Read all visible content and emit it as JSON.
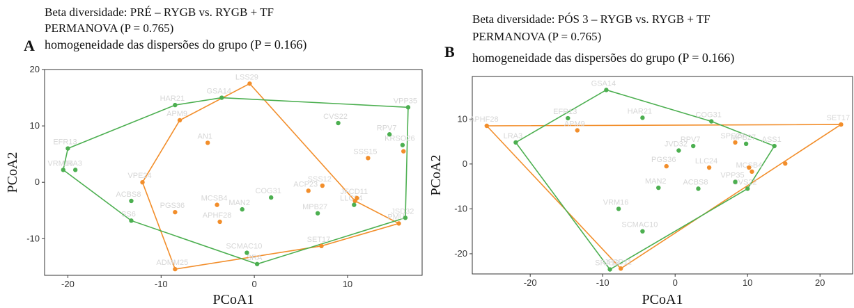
{
  "colors": {
    "rygb": "#F28E2B",
    "rygb_tf": "#4CAF50",
    "label": "#d6d6d6"
  },
  "chart_data": [
    {
      "type": "scatter",
      "panel": "A",
      "title": "Beta diversidade:  PRÉ – RYGB vs. RYGB + TF",
      "subtitle1": "PERMANOVA  (P = 0.765)",
      "subtitle2": "homogeneidade  das dispersões  do grupo (P = 0.166)",
      "xlabel": "PCoA1",
      "ylabel": "PCoA2",
      "xlim": [
        -22.5,
        18
      ],
      "ylim": [
        -16.5,
        20
      ],
      "xticks": [
        -20,
        -10,
        0,
        10
      ],
      "yticks": [
        -10,
        0,
        10,
        20
      ],
      "series": [
        {
          "color": "#F28E2B",
          "points": [
            {
              "label": "LSS29",
              "x": -0.5,
              "y": 17.5
            },
            {
              "label": "APM9",
              "x": -8,
              "y": 11
            },
            {
              "label": "AN1",
              "x": -5,
              "y": 7
            },
            {
              "label": "VPE24",
              "x": -12,
              "y": 0
            },
            {
              "label": "PGS36",
              "x": -8.5,
              "y": -5.3
            },
            {
              "label": "MCSB4",
              "x": -4,
              "y": -4
            },
            {
              "label": "APHF28",
              "x": -3.7,
              "y": -7
            },
            {
              "label": "ADMM25",
              "x": -8.5,
              "y": -15.4
            },
            {
              "label": "SET17",
              "x": 7.2,
              "y": -11.3
            },
            {
              "label": "ACP23",
              "x": 5.8,
              "y": -1.5
            },
            {
              "label": "SSS12",
              "x": 7.3,
              "y": -0.6
            },
            {
              "label": "SSS15",
              "x": 12.2,
              "y": 4.3
            },
            {
              "label": "JFCD11",
              "x": 11,
              "y": -2.8
            },
            {
              "label": "",
              "x": 10.8,
              "y": -3.3
            },
            {
              "label": "PMU",
              "x": 15.5,
              "y": -7.3
            },
            {
              "label": "",
              "x": 16,
              "y": 5.5
            }
          ],
          "hull": [
            "LSS29",
            "APM9",
            "VPE24",
            "ADMM25",
            "SET17",
            "PMU",
            "",
            "LSS29"
          ]
        },
        {
          "color": "#4CAF50",
          "points": [
            {
              "label": "HAR21",
              "x": -8.5,
              "y": 13.7
            },
            {
              "label": "GSA14",
              "x": -3.5,
              "y": 15
            },
            {
              "label": "EFR13",
              "x": -20,
              "y": 6
            },
            {
              "label": "VRM16",
              "x": -20.5,
              "y": 2.2
            },
            {
              "label": "LRA3",
              "x": -19.2,
              "y": 2.2
            },
            {
              "label": "ACBS8",
              "x": -13.2,
              "y": -3.3
            },
            {
              "label": "SS6",
              "x": -13.2,
              "y": -6.8
            },
            {
              "label": "MAN2",
              "x": -1.3,
              "y": -4.8
            },
            {
              "label": "COG31",
              "x": 1.8,
              "y": -2.7
            },
            {
              "label": "SCMAC10",
              "x": -0.8,
              "y": -12.5
            },
            {
              "label": "SRA",
              "x": 0.3,
              "y": -14.5
            },
            {
              "label": "MPB27",
              "x": 6.8,
              "y": -5.5
            },
            {
              "label": "LLC24",
              "x": 10.7,
              "y": -4
            },
            {
              "label": "CVS22",
              "x": 9,
              "y": 10.5
            },
            {
              "label": "VPP35",
              "x": 16.5,
              "y": 13.3
            },
            {
              "label": "RPV7",
              "x": 14.5,
              "y": 8.5
            },
            {
              "label": "KRSO26",
              "x": 15.9,
              "y": 6.6
            },
            {
              "label": "JSD32",
              "x": 16.2,
              "y": -6.3
            }
          ],
          "hull": [
            "EFR13",
            "HAR21",
            "GSA14",
            "VPP35",
            "JSD32",
            "SRA",
            "SS6",
            "VRM16",
            "EFR13"
          ]
        }
      ]
    },
    {
      "type": "scatter",
      "panel": "B",
      "title": "Beta diversidade:  PÓS 3 – RYGB vs. RYGB + TF",
      "subtitle1": "PERMANOVA  (P = 0.765)",
      "subtitle2": "homogeneidade  das dispersões  do grupo (P = 0.166)",
      "xlabel": "PCoA1",
      "ylabel": "PCoA2",
      "xlim": [
        -28,
        24.5
      ],
      "ylim": [
        -24.5,
        19.5
      ],
      "xticks": [
        -20,
        -10,
        0,
        10,
        20
      ],
      "yticks": [
        -20,
        -10,
        0,
        10
      ],
      "series": [
        {
          "color": "#F28E2B",
          "points": [
            {
              "label": "APHF28",
              "x": -26,
              "y": 8.5
            },
            {
              "label": "APM9",
              "x": -13.5,
              "y": 7.5
            },
            {
              "label": "PGS36",
              "x": -1.2,
              "y": -0.5
            },
            {
              "label": "LLC24",
              "x": 4.7,
              "y": -0.8
            },
            {
              "label": "SPS29",
              "x": 8.3,
              "y": 4.8
            },
            {
              "label": "",
              "x": 10.2,
              "y": -0.8
            },
            {
              "label": "MCSB4",
              "x": 10.6,
              "y": -1.7
            },
            {
              "label": "",
              "x": 15.2,
              "y": 0.1
            },
            {
              "label": "SET17",
              "x": 22.9,
              "y": 8.8
            },
            {
              "label": "JFCD11",
              "x": -7.5,
              "y": -23.3
            }
          ],
          "hull": [
            "APHF28",
            "SET17",
            "JFCD11",
            "APHF28"
          ]
        },
        {
          "color": "#4CAF50",
          "points": [
            {
              "label": "GSA14",
              "x": -9.5,
              "y": 16.5
            },
            {
              "label": "EFR13",
              "x": -14.8,
              "y": 10.2
            },
            {
              "label": "HAR21",
              "x": -4.5,
              "y": 10.3
            },
            {
              "label": "COG31",
              "x": 5,
              "y": 9.5
            },
            {
              "label": "LRA3",
              "x": -22,
              "y": 4.8
            },
            {
              "label": "JVD32",
              "x": 0.5,
              "y": 3
            },
            {
              "label": "RPV7",
              "x": 2.5,
              "y": 4
            },
            {
              "label": "MPB27",
              "x": 9.8,
              "y": 4.5
            },
            {
              "label": "ASS1",
              "x": 13.7,
              "y": 4
            },
            {
              "label": "MAN2",
              "x": -2.3,
              "y": -5.3
            },
            {
              "label": "ACBS8",
              "x": 3.2,
              "y": -5.5
            },
            {
              "label": "VPP35",
              "x": 8.3,
              "y": -4
            },
            {
              "label": "CVS22",
              "x": 10,
              "y": -5.5
            },
            {
              "label": "VRM16",
              "x": -7.8,
              "y": -10
            },
            {
              "label": "SCMAC10",
              "x": -4.5,
              "y": -15
            },
            {
              "label": "SRA18",
              "x": -9,
              "y": -23.5
            }
          ],
          "hull": [
            "LRA3",
            "GSA14",
            "COG31",
            "ASS1",
            "CVS22",
            "SRA18",
            "LRA3"
          ]
        }
      ]
    }
  ]
}
